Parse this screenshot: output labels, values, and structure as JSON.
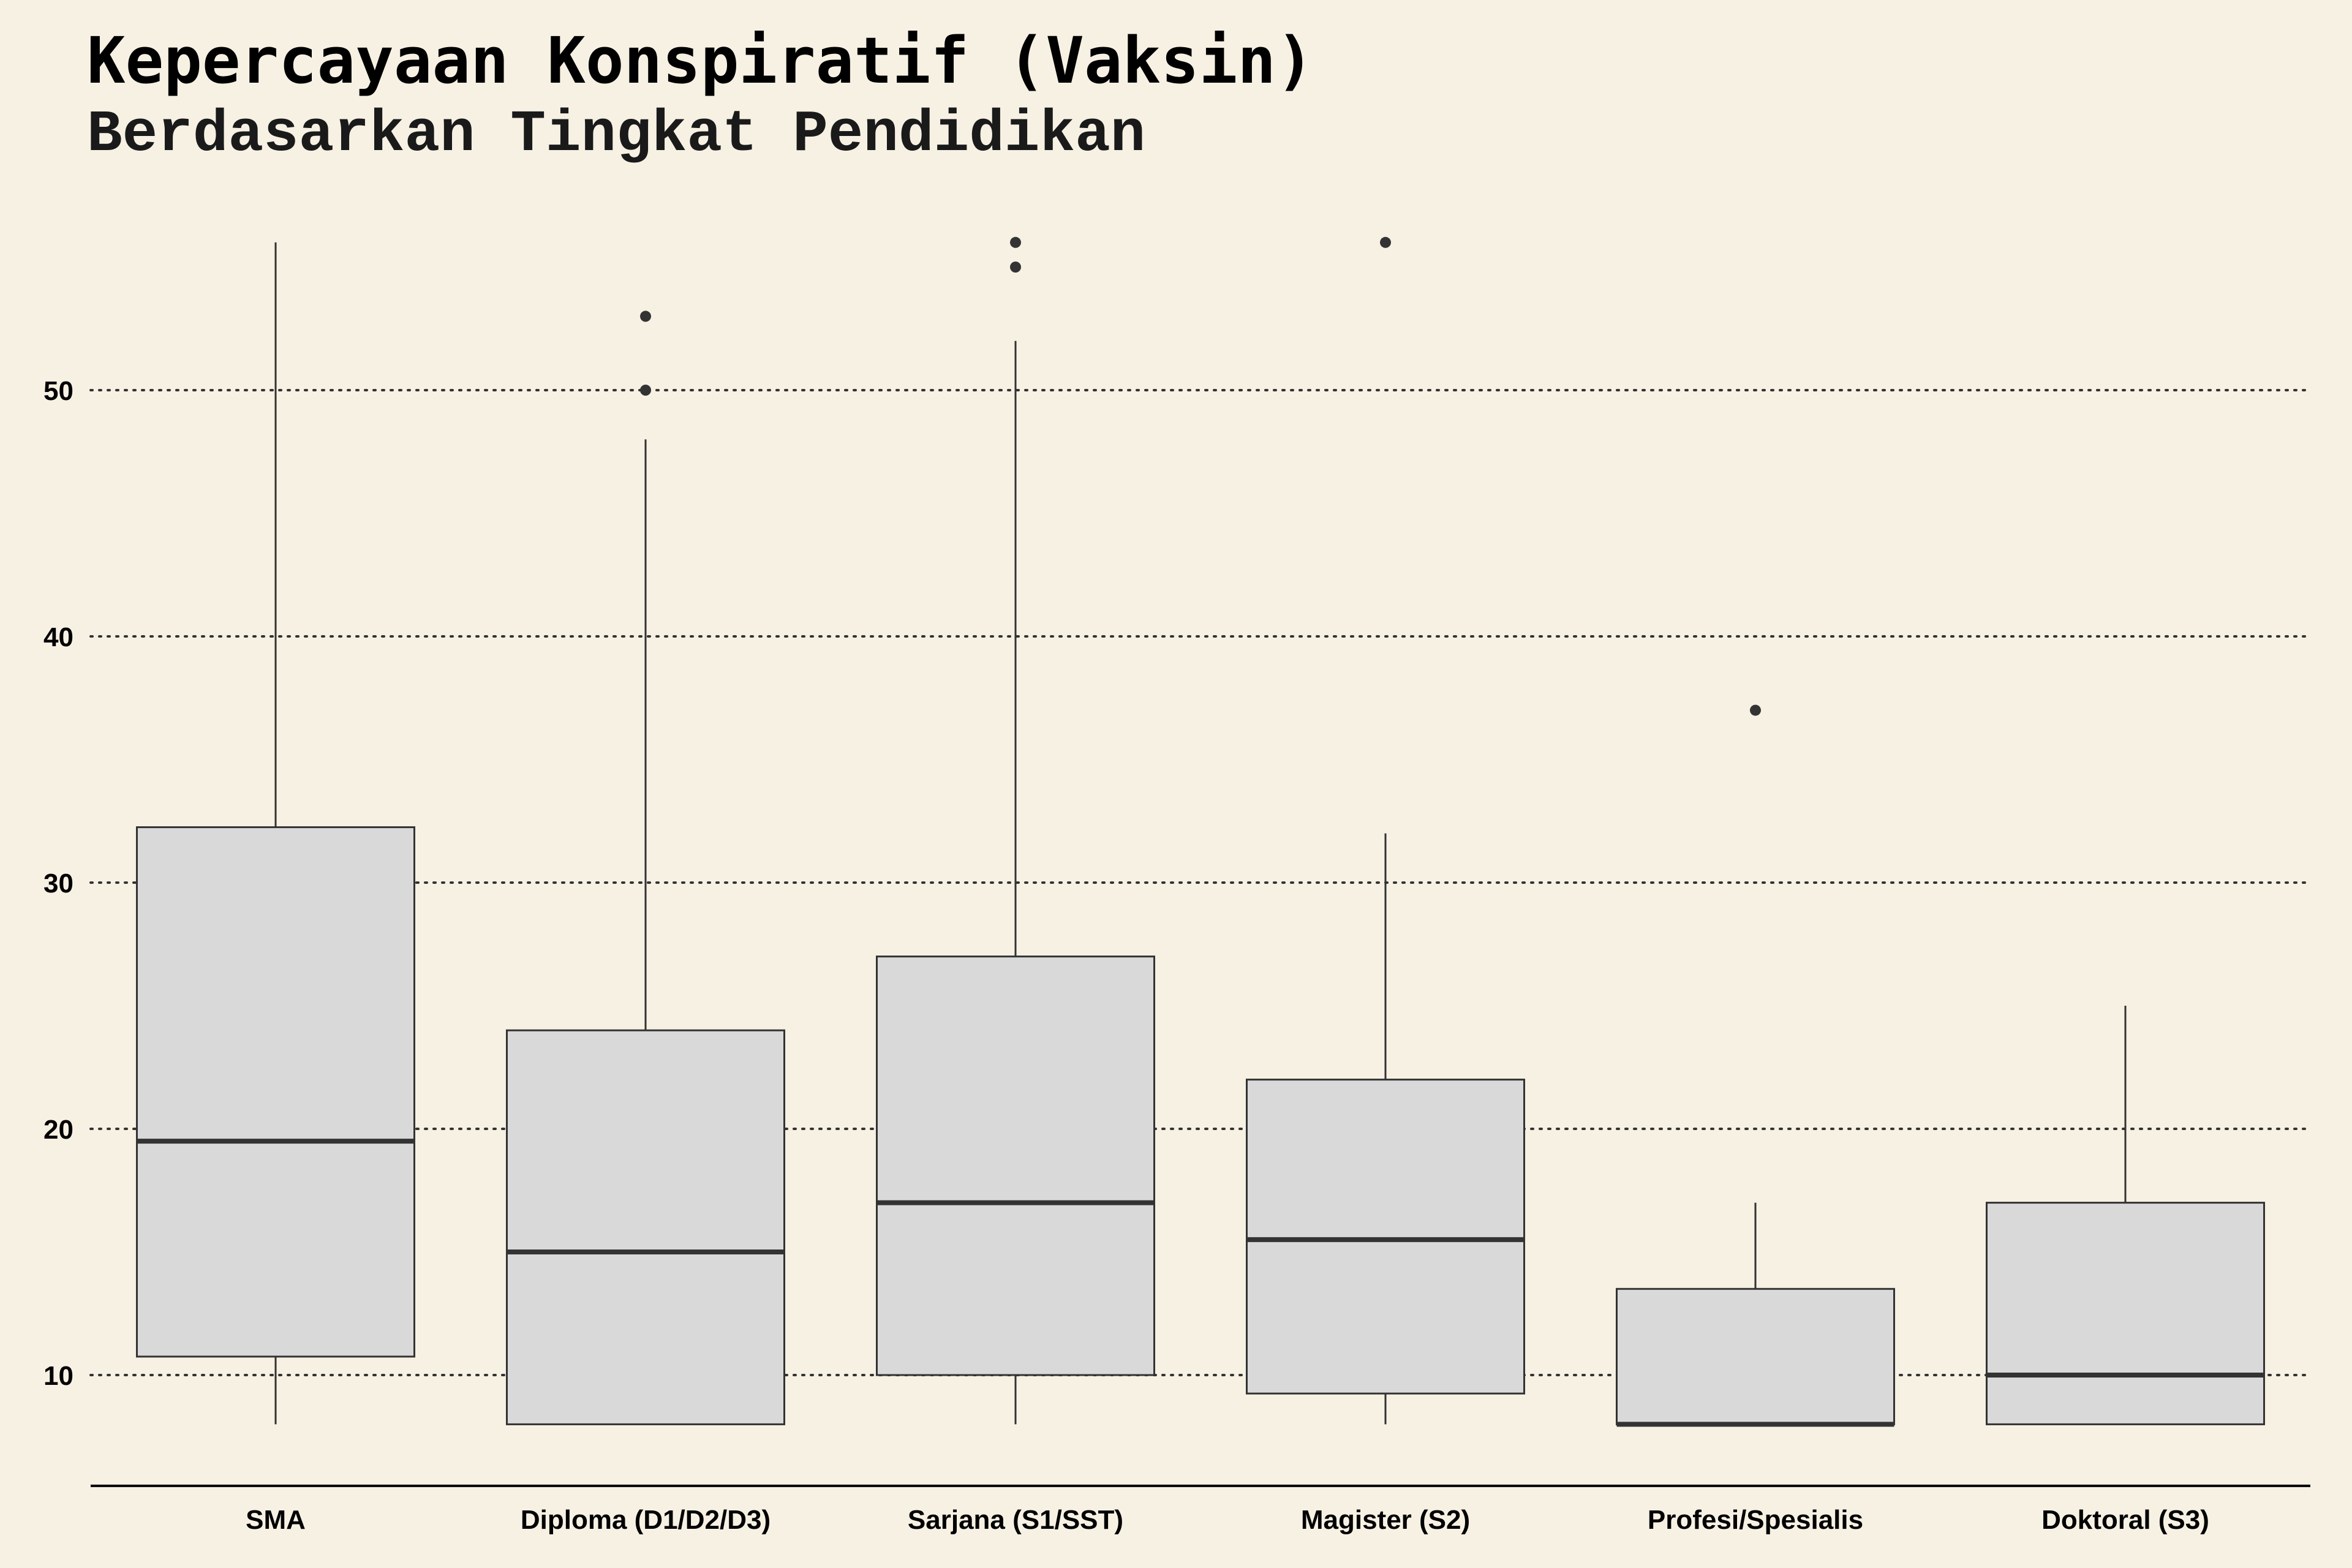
{
  "chart_data": {
    "type": "boxplot",
    "title": "Kepercayaan Konspiratif (Vaksin)",
    "subtitle": "Berdasarkan Tingkat Pendidikan",
    "xlabel": "",
    "ylabel": "",
    "ylim": [
      5.5,
      58
    ],
    "yticks": [
      10,
      20,
      30,
      40,
      50
    ],
    "grid": "horizontal-dotted",
    "legend": "none",
    "categories": [
      "SMA",
      "Diploma (D1/D2/D3)",
      "Sarjana (S1/SST)",
      "Magister (S2)",
      "Profesi/Spesialis",
      "Doktoral (S3)"
    ],
    "boxes": [
      {
        "whisker_low": 8,
        "q1": 10.75,
        "median": 19.5,
        "q3": 32.25,
        "whisker_high": 56,
        "outliers": []
      },
      {
        "whisker_low": 8,
        "q1": 8,
        "median": 15,
        "q3": 24,
        "whisker_high": 48,
        "outliers": [
          50,
          53
        ]
      },
      {
        "whisker_low": 8,
        "q1": 10,
        "median": 17,
        "q3": 27,
        "whisker_high": 52,
        "outliers": [
          55,
          56
        ]
      },
      {
        "whisker_low": 8,
        "q1": 9.25,
        "median": 15.5,
        "q3": 22,
        "whisker_high": 32,
        "outliers": [
          56
        ]
      },
      {
        "whisker_low": 8,
        "q1": 8,
        "median": 8,
        "q3": 13.5,
        "whisker_high": 17,
        "outliers": [
          37
        ]
      },
      {
        "whisker_low": 8,
        "q1": 8,
        "median": 10,
        "q3": 17,
        "whisker_high": 25,
        "outliers": []
      }
    ],
    "colors": {
      "background": "#f7f1e4",
      "box_fill": "#d9d9d9",
      "box_stroke": "#333333",
      "grid": "#333333",
      "axis": "#000000"
    }
  }
}
